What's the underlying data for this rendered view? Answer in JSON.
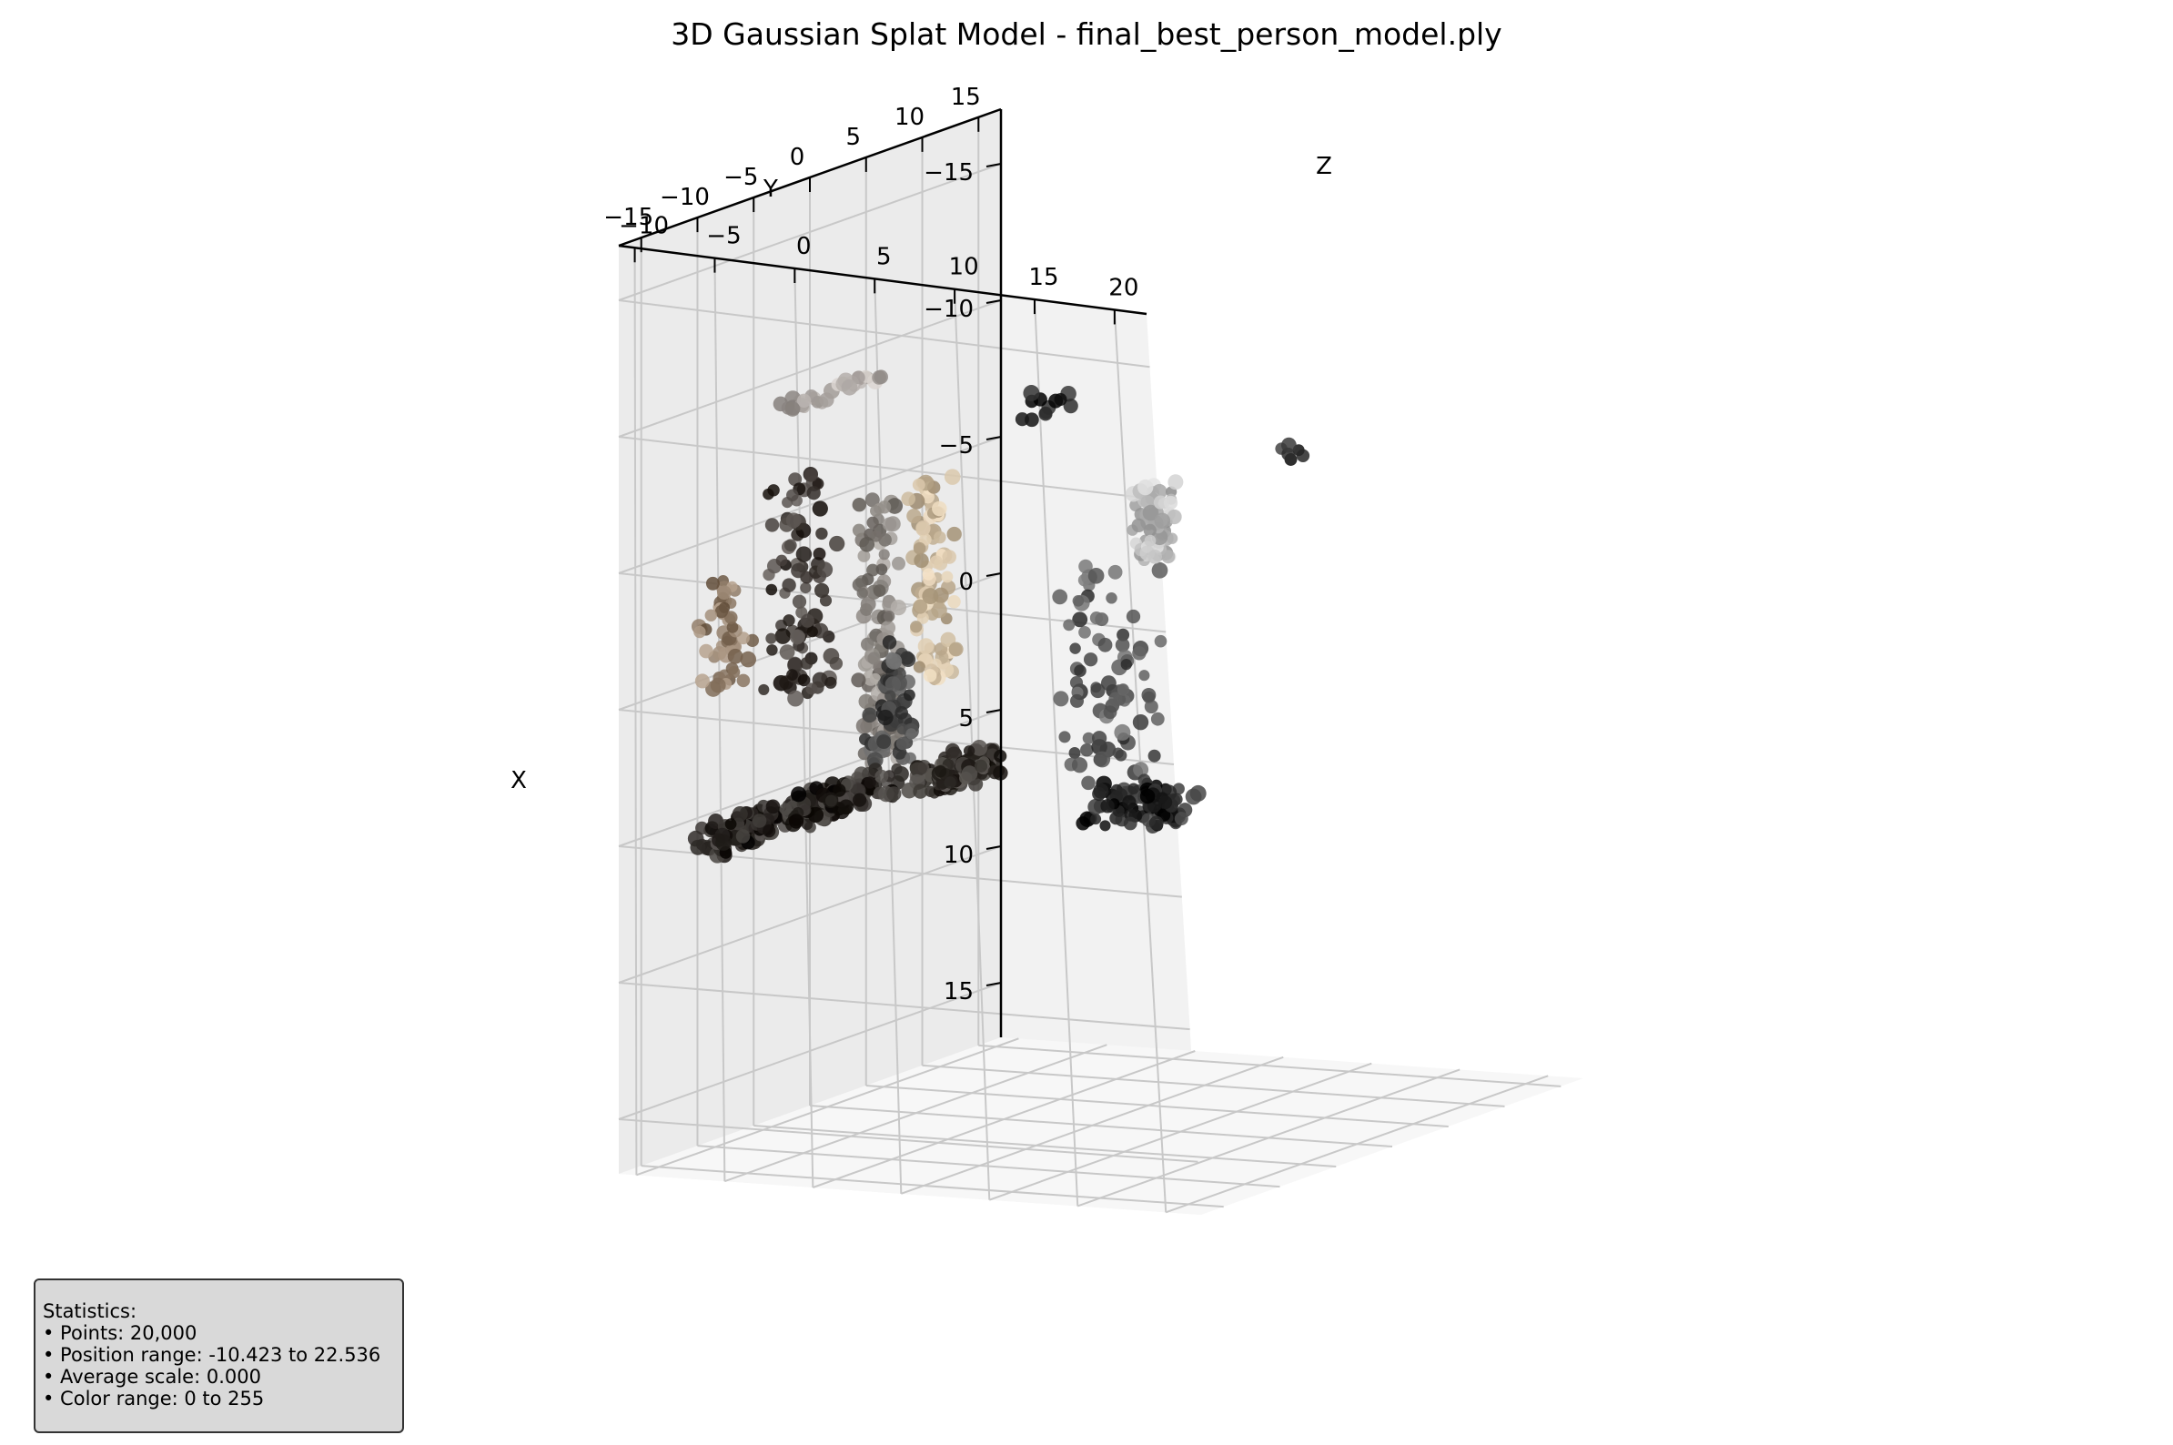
{
  "chart_data": {
    "type": "scatter",
    "title": "3D Gaussian Splat Model - final_best_person_model.ply",
    "axes": {
      "x": {
        "label": "X",
        "ticks": [
          "−15",
          "−10",
          "−5",
          "0",
          "5",
          "10",
          "15"
        ]
      },
      "y": {
        "label": "Y",
        "ticks": [
          "−15",
          "−10",
          "−5",
          "0",
          "5",
          "10",
          "15"
        ]
      },
      "z": {
        "label": "Z",
        "ticks": [
          "−10",
          "−5",
          "0",
          "5",
          "10",
          "15",
          "20"
        ]
      }
    },
    "grid": true,
    "clusters": [
      {
        "x": [
          -6,
          2
        ],
        "y": [
          -3,
          1
        ],
        "z": [
          -12,
          -10
        ],
        "color": "#3a3430",
        "count": 90
      },
      {
        "x": [
          -5,
          5
        ],
        "y": [
          2.5,
          4
        ],
        "z": [
          -10,
          -8
        ],
        "color": "#8a8580",
        "count": 110
      },
      {
        "x": [
          -5.5,
          2
        ],
        "y": [
          4,
          6
        ],
        "z": [
          -8,
          -6
        ],
        "color": "#c9b79b",
        "count": 90
      },
      {
        "x": [
          0.5,
          5
        ],
        "y": [
          3,
          5
        ],
        "z": [
          -10,
          -8
        ],
        "color": "#4a4a4a",
        "count": 60
      },
      {
        "x": [
          5,
          6
        ],
        "y": [
          -12,
          4
        ],
        "z": [
          -10,
          -8
        ],
        "color": "#2e2a27",
        "count": 260
      },
      {
        "x": [
          5,
          6
        ],
        "y": [
          4,
          10
        ],
        "z": [
          -8,
          -6
        ],
        "color": "#3a3632",
        "count": 120
      },
      {
        "x": [
          -4,
          0
        ],
        "y": [
          -12,
          -9
        ],
        "z": [
          -10,
          -8
        ],
        "color": "#8e7a66",
        "count": 50
      },
      {
        "x": [
          -10,
          -10
        ],
        "y": [
          -8,
          0
        ],
        "z": [
          -8,
          -6
        ],
        "color": "#b0aaa6",
        "count": 30
      },
      {
        "x": [
          -3,
          5
        ],
        "y": [
          2,
          6
        ],
        "z": [
          2,
          6
        ],
        "color": "#555555",
        "count": 80
      },
      {
        "x": [
          5,
          6.5
        ],
        "y": [
          2,
          6
        ],
        "z": [
          3,
          8
        ],
        "color": "#222222",
        "count": 90
      },
      {
        "x": [
          -4.5,
          -1.5
        ],
        "y": [
          12,
          15
        ],
        "z": [
          0,
          1
        ],
        "color": "#b9b9b9",
        "count": 60
      },
      {
        "x": [
          -10,
          -9
        ],
        "y": [
          -2,
          2
        ],
        "z": [
          2,
          4
        ],
        "color": "#111111",
        "count": 12
      },
      {
        "x": [
          -9,
          -8.5
        ],
        "y": [
          0,
          2
        ],
        "z": [
          17,
          18
        ],
        "color": "#1a1a1a",
        "count": 6
      }
    ]
  },
  "stats": {
    "heading": "Statistics:",
    "lines": [
      "• Points: 20,000",
      "• Position range: -10.423 to 22.536",
      "• Average scale: 0.000",
      "• Color range: 0 to 255"
    ]
  }
}
